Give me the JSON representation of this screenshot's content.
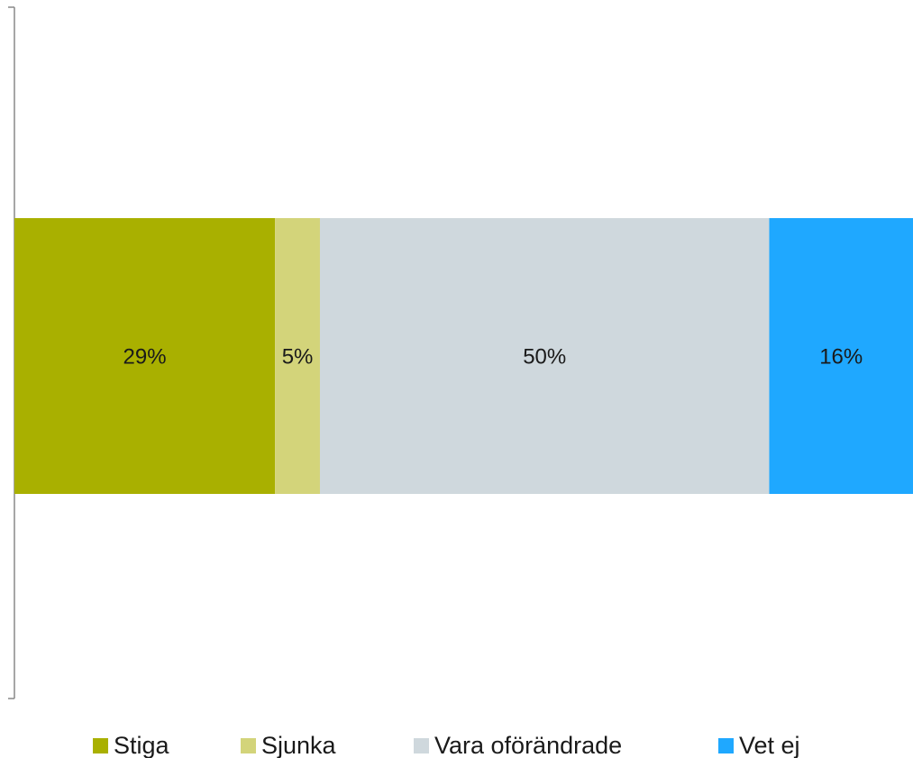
{
  "chart_data": {
    "type": "bar",
    "orientation": "horizontal",
    "stacked": true,
    "categories": [
      null
    ],
    "xlim": [
      0,
      100
    ],
    "legend": "bottom",
    "series": [
      {
        "name": "Stiga",
        "color": "#a9b000",
        "values": [
          29
        ],
        "value_labels": [
          "29%"
        ]
      },
      {
        "name": "Sjunka",
        "color": "#d3d47a",
        "values": [
          5
        ],
        "value_labels": [
          "5%"
        ]
      },
      {
        "name": "Vara oförändrade",
        "color": "#cfd8dd",
        "values": [
          50
        ],
        "value_labels": [
          "50%"
        ]
      },
      {
        "name": "Vet ej",
        "color": "#1fa8ff",
        "values": [
          16
        ],
        "value_labels": [
          "16%"
        ]
      }
    ]
  }
}
